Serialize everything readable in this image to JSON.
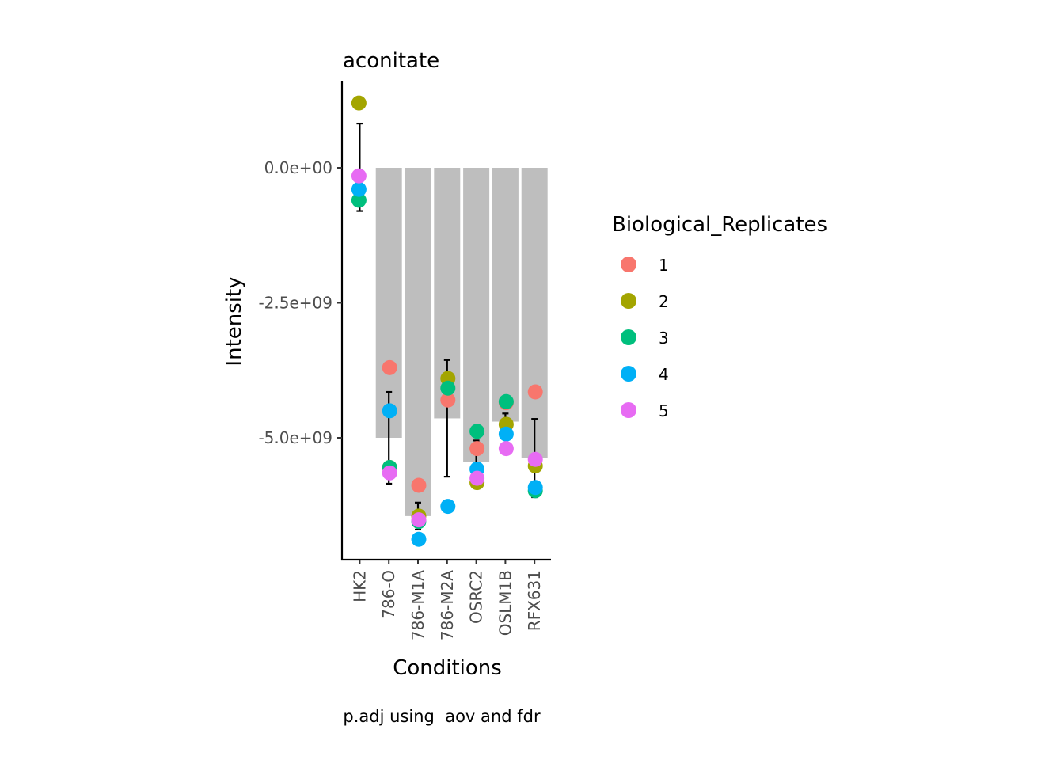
{
  "chart_data": {
    "type": "bar",
    "title": "aconitate",
    "xlabel": "Conditions",
    "ylabel": "Intensity",
    "caption": "p.adj using  aov and fdr",
    "categories": [
      "HK2",
      "786-O",
      "786-M1A",
      "786-M2A",
      "OSRC2",
      "OSLM1B",
      "RFX631"
    ],
    "y_ticks": [
      {
        "value": 0,
        "label": "0.0e+00"
      },
      {
        "value": -2500000000,
        "label": "-2.5e+09"
      },
      {
        "value": -5000000000,
        "label": "-5.0e+09"
      }
    ],
    "ylim": [
      -7250000000,
      1600000000
    ],
    "bar_color": "#bebebe",
    "bar_values": [
      0,
      -5000000000,
      -6450000000,
      -4640000000,
      -5450000000,
      -4700000000,
      -5380000000
    ],
    "error_bars": [
      {
        "low": -800000000,
        "high": 820000000
      },
      {
        "low": -5850000000,
        "high": -4150000000
      },
      {
        "low": -6700000000,
        "high": -6200000000
      },
      {
        "low": -5720000000,
        "high": -3560000000
      },
      {
        "low": -5500000000,
        "high": -5050000000
      },
      {
        "low": -4800000000,
        "high": -4550000000
      },
      {
        "low": -6100000000,
        "high": -4650000000
      }
    ],
    "legend": {
      "title": "Biological_Replicates",
      "placement": "right",
      "entries": [
        {
          "label": "1",
          "color": "#F8766D"
        },
        {
          "label": "2",
          "color": "#A3A500"
        },
        {
          "label": "3",
          "color": "#00BF7D"
        },
        {
          "label": "4",
          "color": "#00B0F6"
        },
        {
          "label": "5",
          "color": "#E76BF3"
        }
      ]
    },
    "series": [
      {
        "name": "1",
        "values": [
          null,
          -3700000000,
          -5880000000,
          -4300000000,
          -5200000000,
          -4350000000,
          -4150000000
        ]
      },
      {
        "name": "2",
        "values": [
          1200000000,
          -5550000000,
          -6450000000,
          -3900000000,
          -5830000000,
          -4750000000,
          -5520000000
        ]
      },
      {
        "name": "3",
        "values": [
          -600000000,
          -5550000000,
          -6550000000,
          -4080000000,
          -4880000000,
          -4330000000,
          -5980000000
        ]
      },
      {
        "name": "4",
        "values": [
          -400000000,
          -4500000000,
          -6880000000,
          -6270000000,
          -5580000000,
          -4930000000,
          -5920000000
        ]
      },
      {
        "name": "5",
        "values": [
          -150000000,
          -5650000000,
          -6520000000,
          null,
          -5750000000,
          -5200000000,
          -5400000000
        ]
      }
    ]
  }
}
